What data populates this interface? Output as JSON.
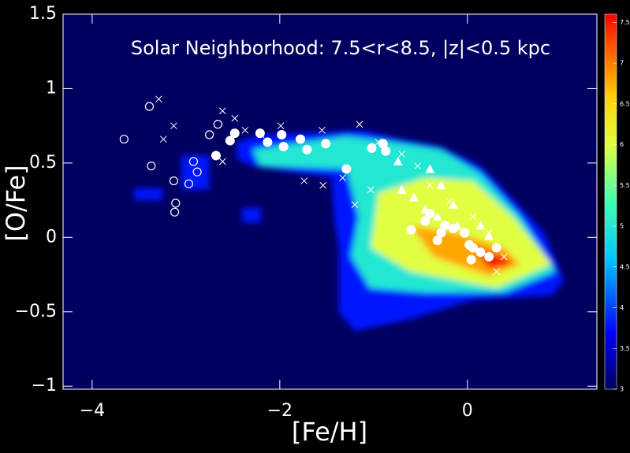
{
  "chart_data": {
    "type": "scatter",
    "annotation": "Solar Neighborhood: 7.5<r<8.5, |z|<0.5 kpc",
    "x_label": "[Fe/H]",
    "y_label": "[O/Fe]",
    "xlim": [
      -4.31,
      1.38
    ],
    "xticks": [
      {
        "value": -4,
        "label": "−4"
      },
      {
        "value": -2,
        "label": "−2"
      },
      0
    ],
    "ylim": [
      -1.02,
      1.5
    ],
    "yticks": [
      {
        "value": -1,
        "label": "−1"
      },
      {
        "value": -0.5,
        "label": "−0.5"
      },
      0,
      0.5,
      1,
      1.5
    ],
    "zlim": [
      3,
      7.6
    ],
    "zticks": [
      3,
      3.5,
      4,
      4.5,
      5,
      5.5,
      6,
      6.5,
      7,
      7.5
    ],
    "density_regions": [
      {
        "level": 3.8,
        "x": [
          -2.46,
          -2.21,
          -1.45,
          -1.12,
          -0.78,
          -0.28,
          0.14,
          0.39,
          0.82,
          1.03,
          0.9,
          0.06,
          -0.61,
          -1.2,
          -1.37,
          -1.37,
          -1.41,
          -1.45,
          -2.3,
          -2.46
        ],
        "y": [
          0.64,
          0.69,
          0.71,
          0.72,
          0.67,
          0.61,
          0.48,
          0.32,
          0.03,
          -0.29,
          -0.39,
          -0.42,
          -0.55,
          -0.63,
          -0.5,
          -0.07,
          0.08,
          0.4,
          0.48,
          0.53
        ]
      },
      {
        "level": 3.8,
        "x": [
          -3.05,
          -2.75,
          -2.75,
          -3.05
        ],
        "y": [
          0.55,
          0.55,
          0.32,
          0.32
        ]
      },
      {
        "level": 3.8,
        "x": [
          -3.55,
          -3.25,
          -3.25,
          -3.55
        ],
        "y": [
          0.33,
          0.33,
          0.25,
          0.25
        ]
      },
      {
        "level": 3.8,
        "x": [
          -2.4,
          -2.2,
          -2.2,
          -2.4
        ],
        "y": [
          0.2,
          0.2,
          0.1,
          0.1
        ]
      },
      {
        "level": 5,
        "x": [
          -2.29,
          -1.29,
          -0.78,
          -0.28,
          0.14,
          0.56,
          0.94,
          0.39,
          -0.45,
          -1.04,
          -1.24,
          -1.16,
          -1.29,
          -2.21
        ],
        "y": [
          0.59,
          0.68,
          0.64,
          0.59,
          0.43,
          0.14,
          -0.23,
          -0.37,
          -0.37,
          -0.34,
          -0.13,
          0.14,
          0.46,
          0.48
        ]
      },
      {
        "level": 6,
        "x": [
          -0.95,
          -0.45,
          0.06,
          0.48,
          0.9,
          0.31,
          -0.61,
          -1.03
        ],
        "y": [
          0.3,
          0.4,
          0.38,
          0.14,
          -0.18,
          -0.34,
          -0.23,
          -0.07
        ]
      },
      {
        "level": 6.8,
        "x": [
          -0.61,
          -0.11,
          0.39,
          0.56,
          0.23,
          -0.36
        ],
        "y": [
          0.08,
          0.03,
          -0.07,
          -0.18,
          -0.26,
          -0.13
        ]
      },
      {
        "level": 7.5,
        "x": [
          0.06,
          0.39,
          0.48,
          0.23
        ],
        "y": [
          -0.07,
          -0.13,
          -0.18,
          -0.21
        ]
      }
    ],
    "series": [
      {
        "marker": "circle-open",
        "color": "#ffffff",
        "x": [
          -3.66,
          -3.39,
          -3.37,
          -3.13,
          -3.11,
          -3.12,
          -2.92,
          -2.88,
          -2.97,
          -2.75,
          -2.66
        ],
        "values": [
          0.66,
          0.88,
          0.48,
          0.38,
          0.23,
          0.17,
          0.51,
          0.44,
          0.36,
          0.69,
          0.76
        ]
      },
      {
        "marker": "cross",
        "color": "#ffffff",
        "x": [
          -3.29,
          -3.13,
          -3.24,
          -2.61,
          -2.48,
          -2.61,
          -2.37,
          -2.2,
          -1.99,
          -1.74,
          -1.54,
          -1.55,
          -1.15,
          -1.2,
          -0.95,
          -0.7,
          -0.53,
          -0.4,
          -0.19,
          0.06,
          0.23,
          0.31,
          0.39,
          -1.33,
          -1.03
        ],
        "values": [
          0.93,
          0.75,
          0.66,
          0.85,
          0.8,
          0.51,
          0.72,
          0.69,
          0.75,
          0.38,
          0.35,
          0.72,
          0.76,
          0.22,
          0.64,
          0.56,
          0.48,
          0.35,
          0.24,
          0.14,
          0.03,
          -0.23,
          -0.13,
          0.4,
          0.32
        ]
      },
      {
        "marker": "circle",
        "color": "#ffffff",
        "x": [
          -2.48,
          -2.53,
          -2.68,
          -2.21,
          -2.13,
          -1.98,
          -1.96,
          -1.78,
          -1.71,
          -1.51,
          -1.29,
          -1.02,
          -0.9,
          -0.87,
          -0.6,
          -0.45,
          -0.4,
          -0.28,
          -0.24,
          -0.15,
          -0.03,
          0.02,
          0.06,
          0.14,
          0.04,
          0.23,
          0.31,
          -0.32
        ],
        "values": [
          0.7,
          0.65,
          0.55,
          0.7,
          0.64,
          0.69,
          0.61,
          0.66,
          0.59,
          0.63,
          0.46,
          0.6,
          0.63,
          0.58,
          0.05,
          0.11,
          0.16,
          0.03,
          0.08,
          0.06,
          0.03,
          -0.05,
          -0.07,
          -0.1,
          -0.15,
          -0.13,
          -0.07,
          -0.02
        ]
      },
      {
        "marker": "triangle",
        "color": "#ffffff",
        "x": [
          -0.7,
          -0.57,
          -0.45,
          -0.32,
          -0.11,
          -0.74,
          -0.4,
          -0.28,
          -0.15,
          0.14,
          0.23
        ],
        "values": [
          0.32,
          0.27,
          0.19,
          0.14,
          0.08,
          0.51,
          0.46,
          0.35,
          0.22,
          0.08,
          0.01
        ]
      }
    ]
  }
}
